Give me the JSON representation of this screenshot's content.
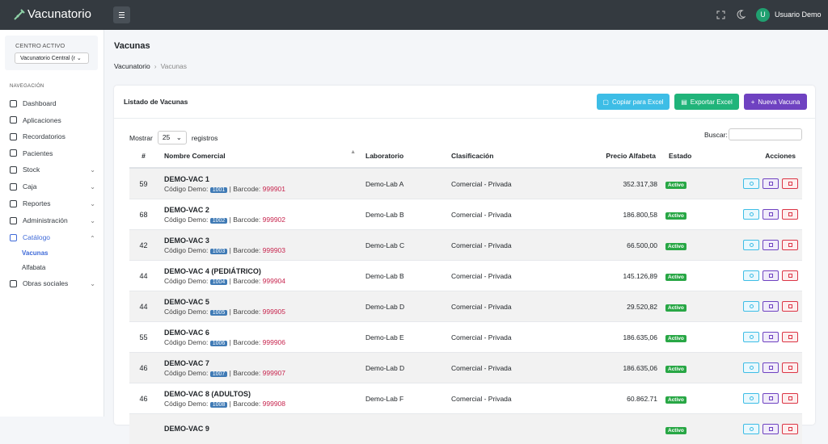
{
  "header": {
    "brand": "Vacunatorio",
    "user_initial": "U",
    "user_name": "Usuario Demo"
  },
  "sidebar": {
    "center_label": "CENTRO ACTIVO",
    "center_value": "Vacunatorio Central (r",
    "nav_label": "NAVEGACIÓN",
    "items": [
      {
        "label": "Dashboard"
      },
      {
        "label": "Aplicaciones"
      },
      {
        "label": "Recordatorios"
      },
      {
        "label": "Pacientes"
      },
      {
        "label": "Stock",
        "submenu": "closed"
      },
      {
        "label": "Caja",
        "submenu": "closed"
      },
      {
        "label": "Reportes",
        "submenu": "closed"
      },
      {
        "label": "Administración",
        "submenu": "closed"
      },
      {
        "label": "Catálogo",
        "submenu": "open",
        "active": true,
        "children": [
          {
            "label": "Vacunas",
            "active": true
          },
          {
            "label": "Alfabata"
          }
        ]
      },
      {
        "label": "Obras sociales",
        "submenu": "closed"
      }
    ]
  },
  "page": {
    "title": "Vacunas",
    "breadcrumb": [
      "Vacunatorio",
      "Vacunas"
    ]
  },
  "card": {
    "title": "Listado de Vacunas",
    "buttons": [
      "Copiar para Excel",
      "Exportar Excel",
      "Nueva Vacuna"
    ],
    "show_label": "Mostrar",
    "page_size": "25",
    "records_label": "registros",
    "search_label": "Buscar:"
  },
  "table": {
    "columns": [
      "#",
      "Nombre Comercial",
      "Laboratorio",
      "Clasificación",
      "Precio Alfabeta",
      "Estado",
      "Acciones"
    ],
    "code_label": "Código Demo:",
    "barcode_label": "| Barcode:",
    "rows": [
      {
        "id": "59",
        "name": "DEMO-VAC 1",
        "code": "1001",
        "barcode": "999901",
        "lab": "Demo-Lab A",
        "classification": "Comercial - Privada",
        "price": "352.317,38",
        "status": "Activo"
      },
      {
        "id": "68",
        "name": "DEMO-VAC 2",
        "code": "1002",
        "barcode": "999902",
        "lab": "Demo-Lab B",
        "classification": "Comercial - Privada",
        "price": "186.800,58",
        "status": "Activo"
      },
      {
        "id": "42",
        "name": "DEMO-VAC 3",
        "code": "1003",
        "barcode": "999903",
        "lab": "Demo-Lab C",
        "classification": "Comercial - Privada",
        "price": "66.500,00",
        "status": "Activo"
      },
      {
        "id": "44",
        "name": "DEMO-VAC 4 (PEDIÁTRICO)",
        "code": "1004",
        "barcode": "999904",
        "lab": "Demo-Lab B",
        "classification": "Comercial - Privada",
        "price": "145.126,89",
        "status": "Activo"
      },
      {
        "id": "44",
        "name": "DEMO-VAC 5",
        "code": "1005",
        "barcode": "999905",
        "lab": "Demo-Lab D",
        "classification": "Comercial - Privada",
        "price": "29.520,82",
        "status": "Activo"
      },
      {
        "id": "55",
        "name": "DEMO-VAC 6",
        "code": "1006",
        "barcode": "999906",
        "lab": "Demo-Lab E",
        "classification": "Comercial - Privada",
        "price": "186.635,06",
        "status": "Activo"
      },
      {
        "id": "46",
        "name": "DEMO-VAC 7",
        "code": "1007",
        "barcode": "999907",
        "lab": "Demo-Lab D",
        "classification": "Comercial - Privada",
        "price": "186.635,06",
        "status": "Activo"
      },
      {
        "id": "46",
        "name": "DEMO-VAC 8 (ADULTOS)",
        "code": "1008",
        "barcode": "999908",
        "lab": "Demo-Lab F",
        "classification": "Comercial - Privada",
        "price": "60.862.71",
        "status": "Activo"
      },
      {
        "name": "DEMO-VAC 9",
        "status": "Activo"
      }
    ]
  }
}
